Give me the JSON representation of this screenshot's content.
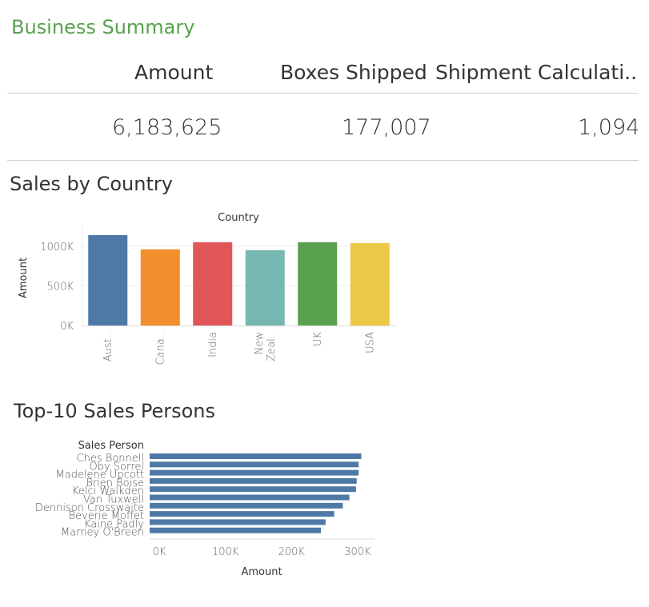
{
  "dashboard": {
    "title": "Business Summary",
    "kpis": [
      {
        "label": "Amount",
        "value": "6,183,625"
      },
      {
        "label": "Boxes Shipped",
        "value": "177,007"
      },
      {
        "label": "Shipment Calculati..",
        "value": "1,094"
      }
    ]
  },
  "sections": {
    "country_title": "Sales by Country",
    "persons_title": "Top-10 Sales Persons"
  },
  "colors": {
    "title_green": "#59a14f",
    "bar_blue": "#4e79a7"
  },
  "chart_data": [
    {
      "type": "bar",
      "title": "Country",
      "xlabel": "",
      "ylabel": "Amount",
      "categories": [
        [
          "Aust.."
        ],
        [
          "Cana.."
        ],
        [
          "India"
        ],
        [
          "New",
          "Zeal.."
        ],
        [
          "UK"
        ],
        [
          "USA"
        ]
      ],
      "values": [
        1140000,
        960000,
        1050000,
        950000,
        1050000,
        1040000
      ],
      "colors": [
        "#4e79a7",
        "#f28e2b",
        "#e15759",
        "#76b7b2",
        "#59a14f",
        "#edc948"
      ],
      "yticks": [
        "0K",
        "500K",
        "1000K"
      ],
      "ytick_values": [
        0,
        500000,
        1000000
      ],
      "ylim": [
        0,
        1200000
      ],
      "grid": true
    },
    {
      "type": "bar",
      "orientation": "horizontal",
      "title": "",
      "ylabel": "Sales Person",
      "xlabel": "Amount",
      "categories": [
        "Ches Bonnell",
        "Oby Sorrel",
        "Madelene Upcott",
        "Brien Boise",
        "Kelci Walkden",
        "Van Tuxwell",
        "Dennison Crosswaite",
        "Beverie Moffet",
        "Kaine Padly",
        "Marney O'Breen"
      ],
      "values": [
        320000,
        316000,
        316000,
        313000,
        312000,
        302000,
        292000,
        279000,
        266000,
        259000
      ],
      "color": "#4e79a7",
      "xticks": [
        "0K",
        "100K",
        "200K",
        "300K"
      ],
      "xtick_values": [
        0,
        100000,
        200000,
        300000
      ],
      "xlim": [
        0,
        340000
      ],
      "grid": false
    }
  ]
}
